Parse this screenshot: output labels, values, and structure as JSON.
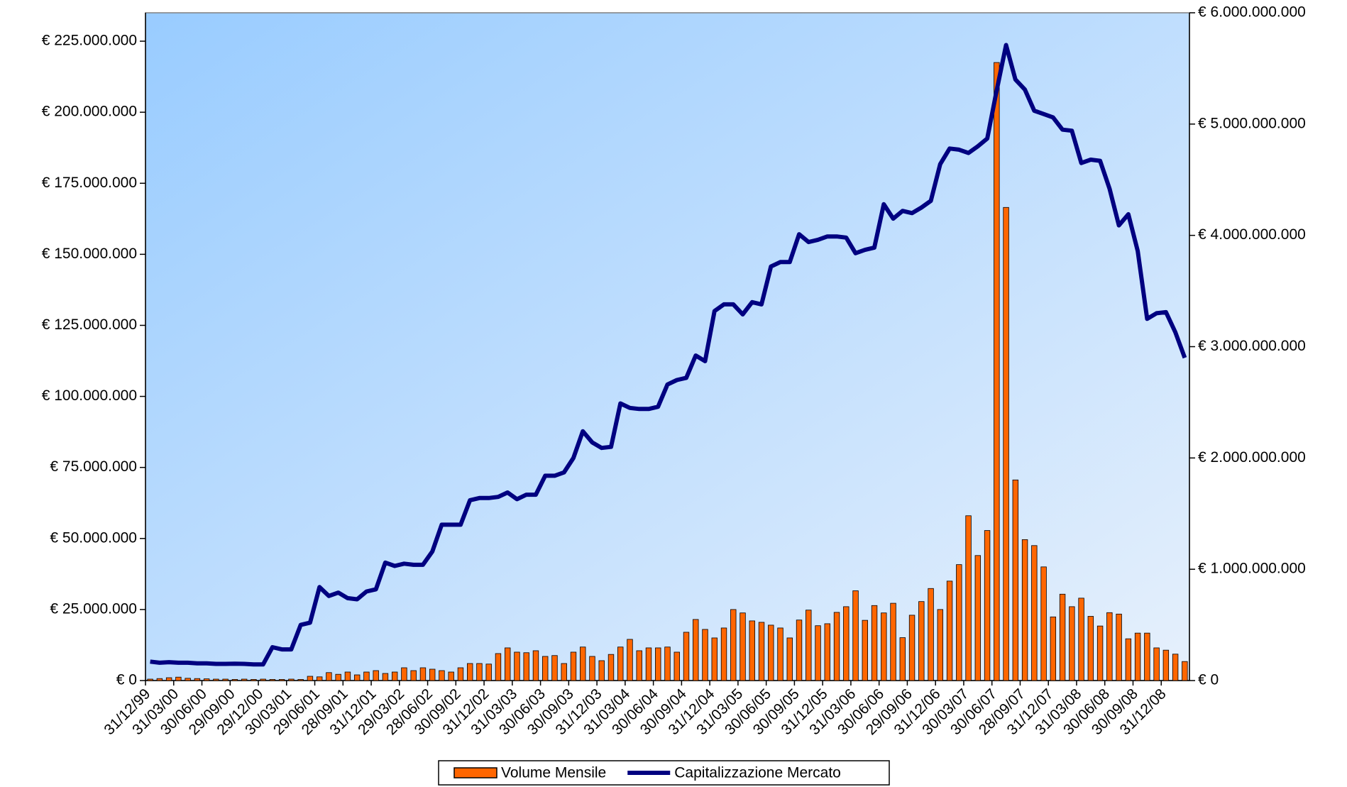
{
  "chart_data": {
    "type": "bar_line",
    "categories": [
      "31/12/99",
      null,
      null,
      "31/03/00",
      null,
      null,
      "30/06/00",
      null,
      null,
      "29/09/00",
      null,
      null,
      "29/12/00",
      null,
      null,
      "30/03/01",
      null,
      null,
      "29/06/01",
      null,
      null,
      "28/09/01",
      null,
      null,
      "31/12/01",
      null,
      null,
      "29/03/02",
      null,
      null,
      "28/06/02",
      null,
      null,
      "30/09/02",
      null,
      null,
      "31/12/02",
      null,
      null,
      "31/03/03",
      null,
      null,
      "30/06/03",
      null,
      null,
      "30/09/03",
      null,
      null,
      "31/12/03",
      null,
      null,
      "31/03/04",
      null,
      null,
      "30/06/04",
      null,
      null,
      "30/09/04",
      null,
      null,
      "31/12/04",
      null,
      null,
      "31/03/05",
      null,
      null,
      "30/06/05",
      null,
      null,
      "30/09/05",
      null,
      null,
      "31/12/05",
      null,
      null,
      "31/03/06",
      null,
      null,
      "30/06/06",
      null,
      null,
      "29/09/06",
      null,
      null,
      "31/12/06",
      null,
      null,
      "30/03/07",
      null,
      null,
      "30/06/07",
      null,
      null,
      "28/09/07",
      null,
      null,
      "31/12/07",
      null,
      null,
      "31/03/08",
      null,
      null,
      "30/06/08",
      null,
      null,
      "30/09/08",
      null,
      null,
      "31/12/08",
      null,
      null
    ],
    "series": [
      {
        "name": "Volume Mensile",
        "type": "bar",
        "color": "#ff6600",
        "axis": "y",
        "values": [
          500000,
          700000,
          1000000,
          1200000,
          800000,
          700000,
          600000,
          500000,
          500000,
          400000,
          500000,
          400000,
          500000,
          400000,
          400000,
          500000,
          400000,
          1500000,
          1300000,
          2800000,
          2200000,
          3000000,
          2000000,
          3000000,
          3500000,
          2500000,
          3000000,
          4500000,
          3500000,
          4500000,
          4000000,
          3500000,
          3000000,
          4500000,
          6000000,
          6000000,
          5800000,
          9500000,
          11500000,
          10000000,
          9800000,
          10500000,
          8500000,
          8800000,
          6000000,
          10000000,
          11800000,
          8500000,
          7000000,
          9200000,
          11800000,
          14500000,
          10500000,
          11500000,
          11500000,
          11800000,
          10000000,
          17000000,
          21500000,
          18000000,
          15000000,
          18500000,
          25000000,
          23800000,
          21000000,
          20500000,
          19500000,
          18500000,
          15000000,
          21300000,
          24800000,
          19300000,
          20000000,
          24000000,
          26000000,
          31600000,
          21200000,
          26400000,
          23800000,
          27200000,
          15100000,
          23000000,
          27800000,
          32400000,
          25000000,
          35000000,
          40800000,
          58000000,
          44000000,
          52800000,
          217500000,
          166500000,
          70600000,
          49600000,
          47500000,
          40000000,
          22400000,
          30400000,
          26000000,
          29000000,
          22600000,
          19200000,
          23900000,
          23400000,
          14700000,
          16700000,
          16700000,
          11500000,
          10700000,
          9300000,
          6700000
        ]
      },
      {
        "name": "Capitalizzazione Mercato",
        "type": "line",
        "color": "#000080",
        "axis": "y2",
        "values": [
          170000000,
          160000000,
          165000000,
          160000000,
          160000000,
          155000000,
          155000000,
          150000000,
          150000000,
          152000000,
          150000000,
          145000000,
          145000000,
          300000000,
          280000000,
          280000000,
          500000000,
          520000000,
          840000000,
          760000000,
          790000000,
          740000000,
          730000000,
          800000000,
          820000000,
          1060000000,
          1030000000,
          1050000000,
          1040000000,
          1040000000,
          1160000000,
          1400000000,
          1400000000,
          1400000000,
          1620000000,
          1640000000,
          1640000000,
          1650000000,
          1690000000,
          1630000000,
          1670000000,
          1670000000,
          1840000000,
          1840000000,
          1870000000,
          2000000000,
          2240000000,
          2140000000,
          2090000000,
          2100000000,
          2490000000,
          2450000000,
          2440000000,
          2440000000,
          2460000000,
          2660000000,
          2700000000,
          2720000000,
          2920000000,
          2870000000,
          3320000000,
          3380000000,
          3380000000,
          3290000000,
          3400000000,
          3380000000,
          3720000000,
          3760000000,
          3760000000,
          4010000000,
          3940000000,
          3960000000,
          3990000000,
          3990000000,
          3980000000,
          3840000000,
          3870000000,
          3890000000,
          4280000000,
          4150000000,
          4220000000,
          4200000000,
          4250000000,
          4310000000,
          4640000000,
          4780000000,
          4770000000,
          4740000000,
          4800000000,
          4870000000,
          5300000000,
          5710000000,
          5400000000,
          5310000000,
          5120000000,
          5090000000,
          5060000000,
          4950000000,
          4940000000,
          4650000000,
          4680000000,
          4670000000,
          4420000000,
          4090000000,
          4190000000,
          3860000000,
          3250000000,
          3300000000,
          3310000000,
          3130000000,
          2900000000
        ]
      }
    ],
    "ylim": [
      0,
      235000000
    ],
    "yticks": [
      {
        "value": 0,
        "label": "€ 0"
      },
      {
        "value": 25000000,
        "label": "€ 25.000.000"
      },
      {
        "value": 50000000,
        "label": "€ 50.000.000"
      },
      {
        "value": 75000000,
        "label": "€ 75.000.000"
      },
      {
        "value": 100000000,
        "label": "€ 100.000.000"
      },
      {
        "value": 125000000,
        "label": "€ 125.000.000"
      },
      {
        "value": 150000000,
        "label": "€ 150.000.000"
      },
      {
        "value": 175000000,
        "label": "€ 175.000.000"
      },
      {
        "value": 200000000,
        "label": "€ 200.000.000"
      },
      {
        "value": 225000000,
        "label": "€ 225.000.000"
      }
    ],
    "y2lim": [
      0,
      6000000000
    ],
    "y2ticks": [
      {
        "value": 0,
        "label": "€ 0"
      },
      {
        "value": 1000000000,
        "label": "€ 1.000.000.000"
      },
      {
        "value": 2000000000,
        "label": "€ 2.000.000.000"
      },
      {
        "value": 3000000000,
        "label": "€ 3.000.000.000"
      },
      {
        "value": 4000000000,
        "label": "€ 4.000.000.000"
      },
      {
        "value": 5000000000,
        "label": "€ 5.000.000.000"
      },
      {
        "value": 6000000000,
        "label": "€ 6.000.000.000"
      }
    ],
    "legend": "bottom"
  }
}
